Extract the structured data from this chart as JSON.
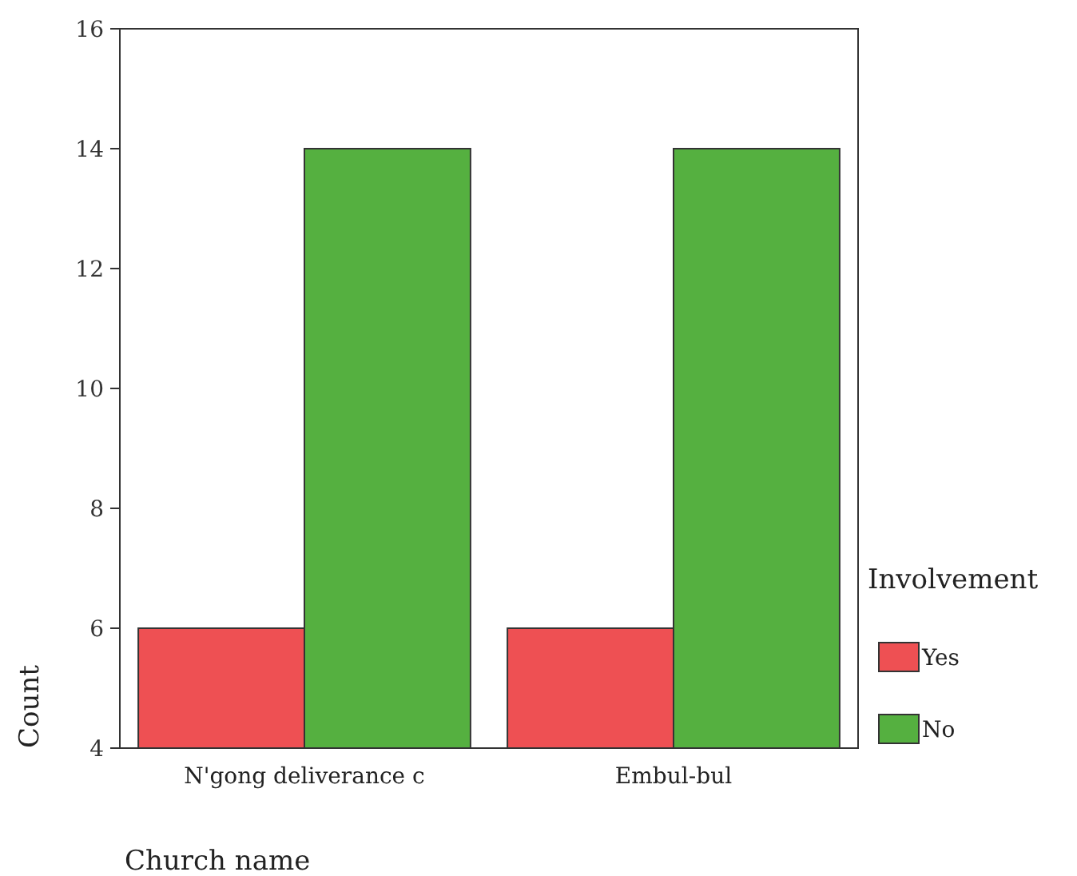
{
  "chart_data": {
    "type": "bar",
    "xlabel": "Church name",
    "ylabel": "Count",
    "legend_title": "Involvement",
    "categories": [
      "N'gong deliverance c",
      "Embul-bul"
    ],
    "series": [
      {
        "name": "Yes",
        "color": "#ee5053",
        "values": [
          6,
          6
        ]
      },
      {
        "name": "No",
        "color": "#55b040",
        "values": [
          14,
          14
        ]
      }
    ],
    "ylim": [
      4,
      16
    ],
    "yticks": [
      4,
      6,
      8,
      10,
      12,
      14,
      16
    ],
    "legend": "right"
  }
}
